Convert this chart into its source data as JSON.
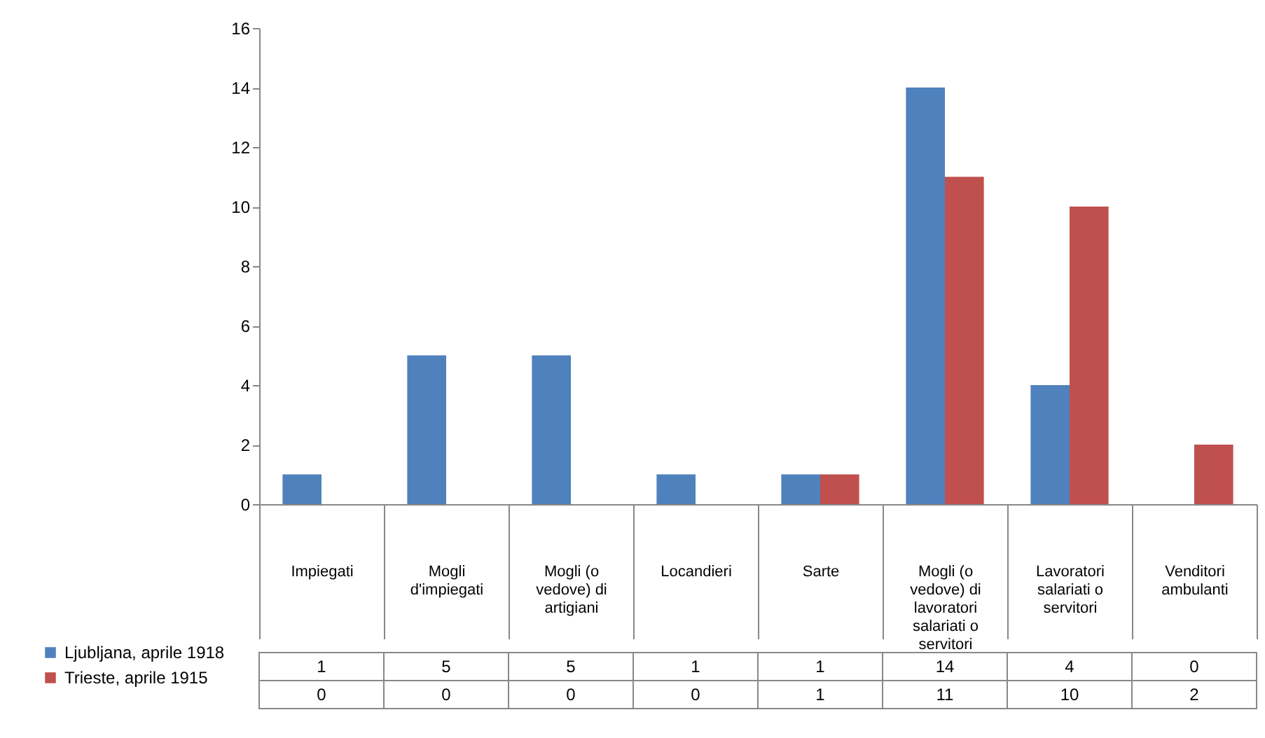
{
  "chart_data": {
    "type": "bar",
    "categories": [
      "Impiegati",
      "Mogli d'impiegati",
      "Mogli (o vedove) di artigiani",
      "Locandieri",
      "Sarte",
      "Mogli (o vedove) di lavoratori salariati o servitori",
      "Lavoratori salariati o servitori",
      "Venditori ambulanti"
    ],
    "series": [
      {
        "name": "Ljubljana, aprile 1918",
        "color": "#4f81bd",
        "values": [
          1,
          5,
          5,
          1,
          1,
          14,
          4,
          0
        ]
      },
      {
        "name": "Trieste, aprile 1915",
        "color": "#c0504d",
        "values": [
          0,
          0,
          0,
          0,
          1,
          11,
          10,
          2
        ]
      }
    ],
    "ylim": [
      0,
      16
    ],
    "yticks": [
      0,
      2,
      4,
      6,
      8,
      10,
      12,
      14,
      16
    ],
    "grid": false,
    "legend": "bottom left",
    "data_labels": true
  }
}
